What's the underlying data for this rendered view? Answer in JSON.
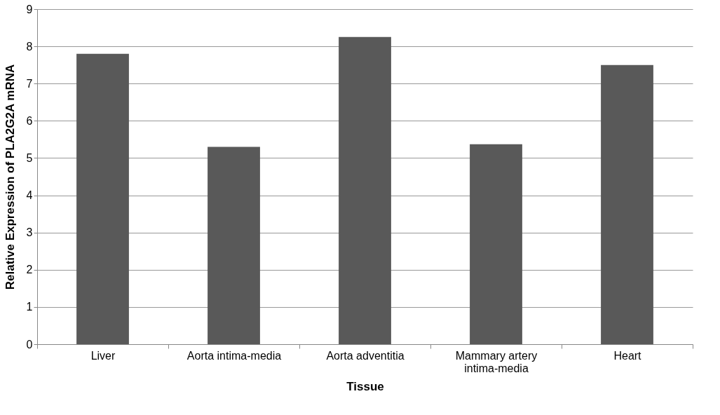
{
  "chart_data": {
    "type": "bar",
    "xlabel": "Tissue",
    "ylabel": "Relative Expression of PLA2G2A mRNA",
    "categories": [
      "Liver",
      "Aorta intima-media",
      "Aorta adventitia",
      "Mammary artery intima-media",
      "Heart"
    ],
    "values": [
      7.8,
      5.3,
      8.25,
      5.37,
      7.5
    ],
    "color": "#595959",
    "ylim": [
      0,
      9
    ],
    "yticks": [
      0,
      1,
      2,
      3,
      4,
      5,
      6,
      7,
      8,
      9
    ],
    "grid": "y"
  }
}
